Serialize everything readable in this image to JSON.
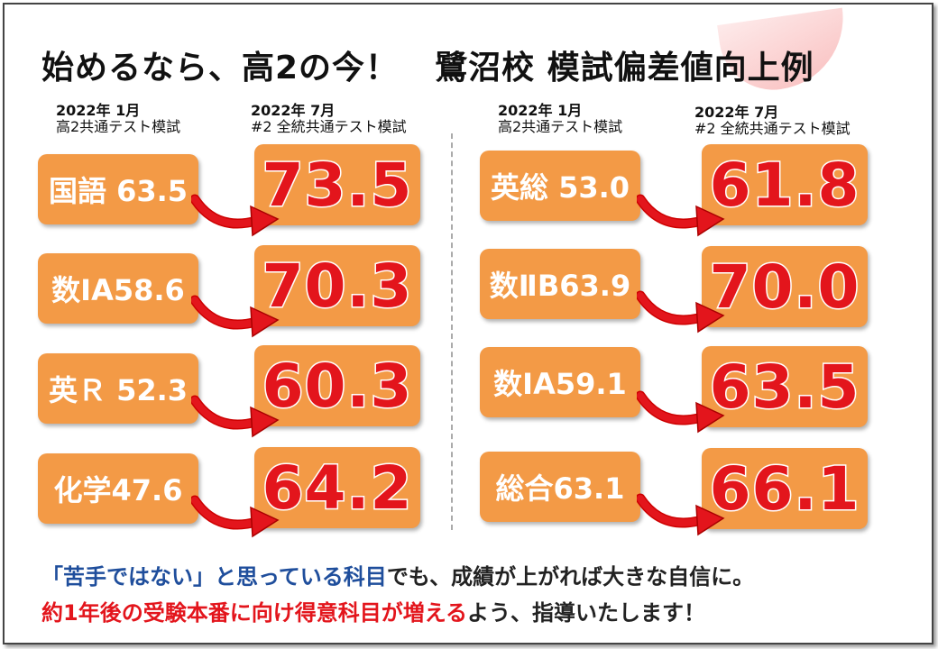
{
  "title": {
    "part1": "始めるなら、高2の今！",
    "part2": "鷺沼校 模試偏差値向上例"
  },
  "left": {
    "before_header": {
      "line1": "2022年 1月",
      "line2": "高2共通テスト模試"
    },
    "after_header": {
      "line1": "2022年 7月",
      "line2": "#2 全統共通テスト模試"
    },
    "rows": [
      {
        "before": "国語 63.5",
        "after": "73.5"
      },
      {
        "before": "数IA58.6",
        "after": "70.3"
      },
      {
        "before": "英Ｒ 52.3",
        "after": "60.3"
      },
      {
        "before": "化学47.6",
        "after": "64.2"
      }
    ]
  },
  "right": {
    "before_header": {
      "line1": "2022年 1月",
      "line2": "高2共通テスト模試"
    },
    "after_header": {
      "line1": "2022年 7月",
      "line2": "#2 全統共通テスト模試"
    },
    "rows": [
      {
        "before": "英総 53.0",
        "after": "61.8"
      },
      {
        "before": "数ⅡB63.9",
        "after": "70.0"
      },
      {
        "before": "数IA59.1",
        "after": "63.5"
      },
      {
        "before": "総合63.1",
        "after": "66.1"
      }
    ]
  },
  "footer": {
    "line1_blue": "「苦手ではない」と思っている科目",
    "line1_rest": "でも、成績が上がれば大きな自信に。",
    "line2_red": "約1年後の受験本番に向け得意科目が増える",
    "line2_rest": "よう、指導いたします！"
  },
  "colors": {
    "orange": "#f39a46",
    "red": "#e3151c",
    "blue": "#1f4e9c"
  }
}
